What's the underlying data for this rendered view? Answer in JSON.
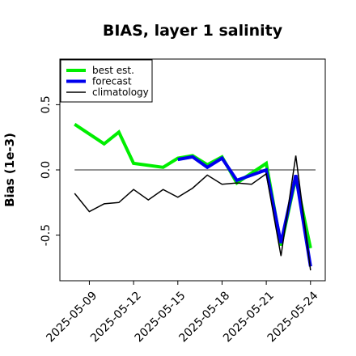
{
  "chart_data": {
    "type": "line",
    "title": "BIAS, layer 1 salinity",
    "ylabel": "Bias (1e-3)",
    "xlabel": "",
    "xlim": [
      "2025-05-07",
      "2025-05-25"
    ],
    "ylim": [
      -0.85,
      0.85
    ],
    "yticks": [
      -0.5,
      0.0,
      0.5
    ],
    "ytick_labels": [
      "-0.5",
      "0.0",
      "0.5"
    ],
    "xticks": [
      "2025-05-09",
      "2025-05-12",
      "2025-05-15",
      "2025-05-18",
      "2025-05-21",
      "2025-05-24"
    ],
    "highlighted_tick": "2025-05-15",
    "highlight_color": "#228B22",
    "reference_line": 0.0,
    "legend_position": "upper left",
    "series": [
      {
        "name": "best est.",
        "color": "#00ee00",
        "width": 4,
        "x": [
          "2025-05-08",
          "2025-05-10",
          "2025-05-11",
          "2025-05-12",
          "2025-05-14",
          "2025-05-15",
          "2025-05-16",
          "2025-05-17",
          "2025-05-18",
          "2025-05-19",
          "2025-05-21",
          "2025-05-22",
          "2025-05-23",
          "2025-05-24"
        ],
        "y": [
          0.35,
          0.2,
          0.29,
          0.05,
          0.02,
          0.09,
          0.11,
          0.04,
          0.1,
          -0.1,
          0.05,
          -0.58,
          -0.06,
          -0.6
        ]
      },
      {
        "name": "forecast",
        "color": "#0000ee",
        "width": 4,
        "x": [
          "2025-05-15",
          "2025-05-16",
          "2025-05-17",
          "2025-05-18",
          "2025-05-19",
          "2025-05-21",
          "2025-05-22",
          "2025-05-23",
          "2025-05-24"
        ],
        "y": [
          0.08,
          0.1,
          0.02,
          0.09,
          -0.08,
          0.0,
          -0.56,
          -0.04,
          -0.74
        ]
      },
      {
        "name": "climatology",
        "color": "#000000",
        "width": 1.5,
        "x": [
          "2025-05-08",
          "2025-05-09",
          "2025-05-10",
          "2025-05-11",
          "2025-05-12",
          "2025-05-13",
          "2025-05-14",
          "2025-05-15",
          "2025-05-16",
          "2025-05-17",
          "2025-05-18",
          "2025-05-19",
          "2025-05-20",
          "2025-05-21",
          "2025-05-22",
          "2025-05-23",
          "2025-05-24"
        ],
        "y": [
          -0.18,
          -0.32,
          -0.26,
          -0.25,
          -0.15,
          -0.23,
          -0.15,
          -0.21,
          -0.14,
          -0.04,
          -0.11,
          -0.1,
          -0.11,
          -0.03,
          -0.66,
          0.11,
          -0.77
        ]
      }
    ]
  }
}
